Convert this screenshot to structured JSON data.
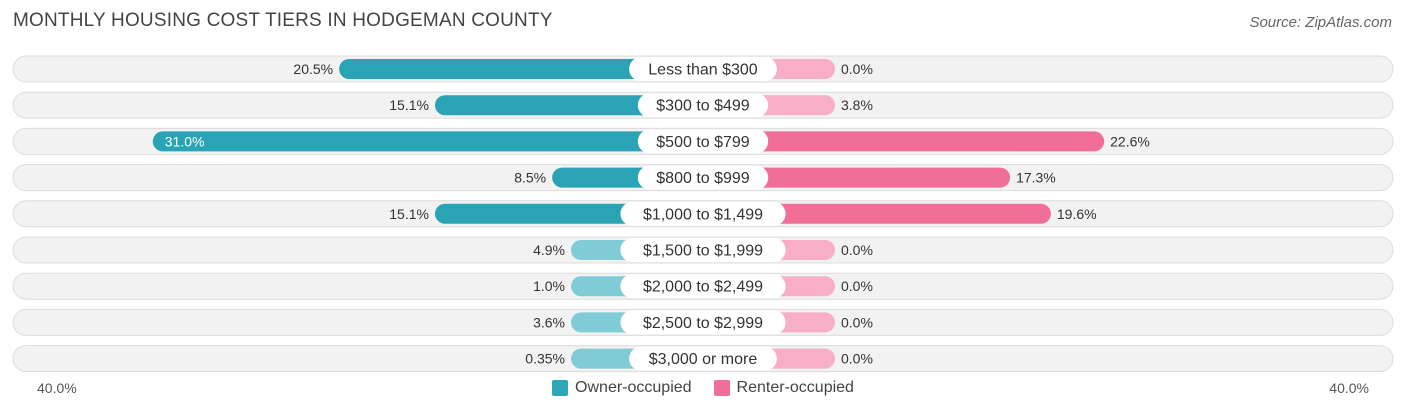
{
  "title": "MONTHLY HOUSING COST TIERS IN HODGEMAN COUNTY",
  "source": "Source: ZipAtlas.com",
  "axis": {
    "left_label": "40.0%",
    "right_label": "40.0%"
  },
  "legend": [
    {
      "name": "Owner-occupied",
      "color": "#2ea8b8"
    },
    {
      "name": "Renter-occupied",
      "color": "#f06e98"
    }
  ],
  "colors": {
    "owner_strong": "#2aa3b4",
    "owner_light": "#7fcbd6",
    "renter_strong": "#f06e98",
    "renter_light": "#f7aec6",
    "row_bg": "#f2f2f2",
    "row_border": "#dcdcdc"
  },
  "chart_data": {
    "type": "bar",
    "orientation": "horizontal-diverging",
    "title": "MONTHLY HOUSING COST TIERS IN HODGEMAN COUNTY",
    "xlim": [
      -40,
      40
    ],
    "categories": [
      "Less than $300",
      "$300 to $499",
      "$500 to $799",
      "$800 to $999",
      "$1,000 to $1,499",
      "$1,500 to $1,999",
      "$2,000 to $2,499",
      "$2,500 to $2,999",
      "$3,000 or more"
    ],
    "series": [
      {
        "name": "Owner-occupied",
        "values": [
          20.5,
          15.1,
          31.0,
          8.5,
          15.1,
          4.9,
          1.0,
          3.6,
          0.35
        ],
        "labels": [
          "20.5%",
          "15.1%",
          "31.0%",
          "8.5%",
          "15.1%",
          "4.9%",
          "1.0%",
          "3.6%",
          "0.35%"
        ]
      },
      {
        "name": "Renter-occupied",
        "values": [
          0.0,
          3.8,
          22.6,
          17.3,
          19.6,
          0.0,
          0.0,
          0.0,
          0.0
        ],
        "labels": [
          "0.0%",
          "3.8%",
          "22.6%",
          "17.3%",
          "19.6%",
          "0.0%",
          "0.0%",
          "0.0%",
          "0.0%"
        ]
      }
    ]
  }
}
